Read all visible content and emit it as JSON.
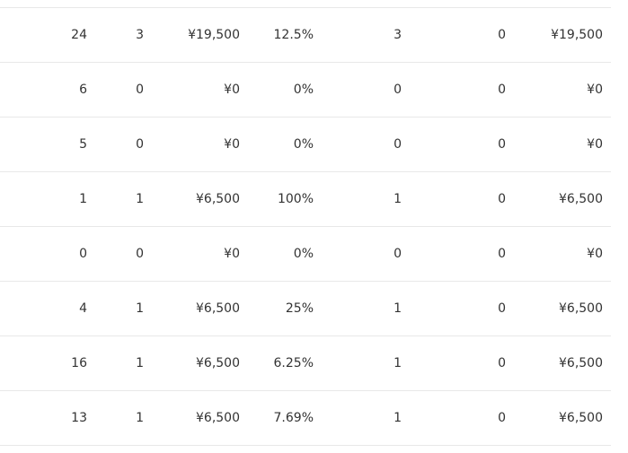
{
  "table": {
    "rows": [
      [
        "24",
        "3",
        "¥19,500",
        "12.5%",
        "3",
        "0",
        "¥19,500"
      ],
      [
        "6",
        "0",
        "¥0",
        "0%",
        "0",
        "0",
        "¥0"
      ],
      [
        "5",
        "0",
        "¥0",
        "0%",
        "0",
        "0",
        "¥0"
      ],
      [
        "1",
        "1",
        "¥6,500",
        "100%",
        "1",
        "0",
        "¥6,500"
      ],
      [
        "0",
        "0",
        "¥0",
        "0%",
        "0",
        "0",
        "¥0"
      ],
      [
        "4",
        "1",
        "¥6,500",
        "25%",
        "1",
        "0",
        "¥6,500"
      ],
      [
        "16",
        "1",
        "¥6,500",
        "6.25%",
        "1",
        "0",
        "¥6,500"
      ],
      [
        "13",
        "1",
        "¥6,500",
        "7.69%",
        "1",
        "0",
        "¥6,500"
      ]
    ]
  }
}
